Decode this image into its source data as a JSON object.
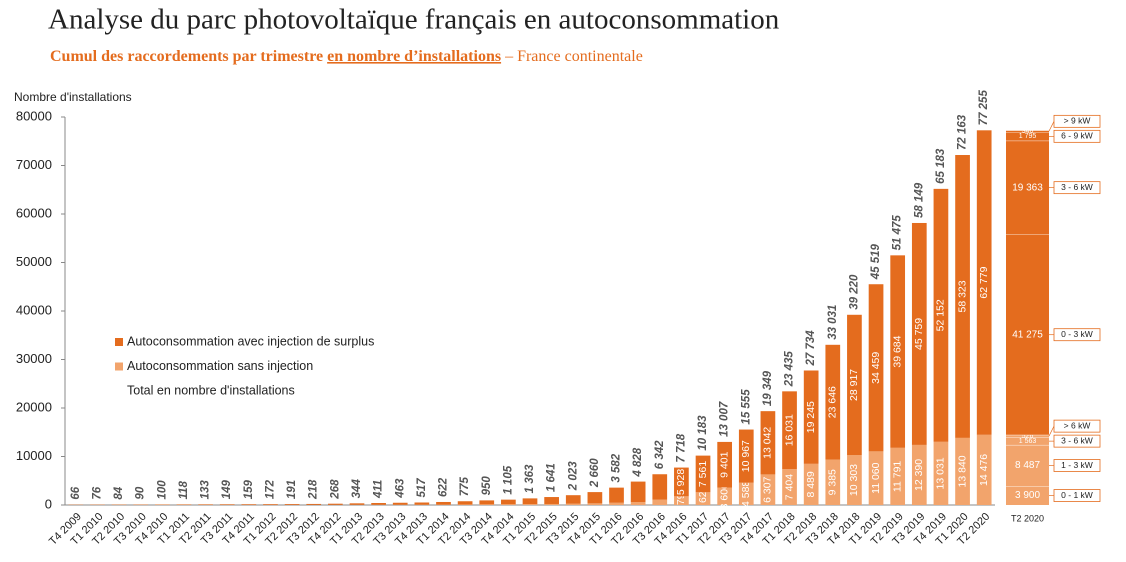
{
  "chart_data": {
    "type": "stacked_bar",
    "title": "Analyse du parc photovoltaïque français en autoconsommation",
    "subtitle": [
      "Cumul des raccordements par trimestre",
      "en nombre d’installations",
      "– France continentale"
    ],
    "y_label": "Nombre d'installations",
    "categories": [
      "T4 2009",
      "T1 2010",
      "T2 2010",
      "T3 2010",
      "T4 2010",
      "T1 2011",
      "T2 2011",
      "T3 2011",
      "T4 2011",
      "T1 2012",
      "T2 2012",
      "T3 2012",
      "T4 2012",
      "T1 2013",
      "T2 2013",
      "T3 2013",
      "T4 2013",
      "T1 2014",
      "T2 2014",
      "T3 2014",
      "T4 2014",
      "T1 2015",
      "T2 2015",
      "T3 2015",
      "T4 2015",
      "T1 2016",
      "T2 2016",
      "T3 2016",
      "T4 2016",
      "T1 2017",
      "T2 2017",
      "T3 2017",
      "T4 2017",
      "T1 2018",
      "T2 2018",
      "T3 2018",
      "T4 2018",
      "T1 2019",
      "T2 2019",
      "T3 2019",
      "T4 2019",
      "T1 2020",
      "T2 2020"
    ],
    "series": [
      {
        "name": "Autoconsommation sans injection",
        "color": "#f2a46c",
        "values": [
          10,
          10,
          10,
          10,
          10,
          15,
          15,
          20,
          20,
          20,
          25,
          30,
          40,
          50,
          60,
          70,
          80,
          90,
          110,
          130,
          150,
          180,
          210,
          260,
          340,
          460,
          620,
          1125,
          1790,
          2622,
          3606,
          4588,
          6307,
          7404,
          8489,
          9385,
          10303,
          11060,
          11791,
          12390,
          13031,
          13840,
          14476
        ],
        "value_labels": [
          null,
          null,
          null,
          null,
          null,
          null,
          null,
          null,
          null,
          null,
          null,
          null,
          null,
          null,
          null,
          null,
          null,
          null,
          null,
          null,
          null,
          null,
          null,
          null,
          null,
          null,
          null,
          null,
          "1 790",
          "2 622",
          "3 606",
          "4 588",
          "6 307",
          "7 404",
          "8 489",
          "9 385",
          "10 303",
          "11 060",
          "11 791",
          "12 390",
          "13 031",
          "13 840",
          "14 476"
        ]
      },
      {
        "name": "Autoconsommation avec injection de surplus",
        "color": "#e46c1e",
        "values": [
          56,
          66,
          74,
          80,
          90,
          103,
          118,
          129,
          139,
          152,
          166,
          188,
          228,
          294,
          351,
          393,
          437,
          532,
          665,
          820,
          955,
          1183,
          1431,
          1763,
          2320,
          3122,
          4208,
          5217,
          5928,
          7561,
          9401,
          10967,
          13042,
          16031,
          19245,
          23646,
          28917,
          34459,
          39684,
          45759,
          52152,
          58323,
          62779
        ],
        "value_labels": [
          null,
          null,
          null,
          null,
          null,
          null,
          null,
          null,
          null,
          null,
          null,
          null,
          null,
          null,
          null,
          null,
          null,
          null,
          null,
          null,
          null,
          null,
          null,
          null,
          null,
          null,
          null,
          null,
          "5 928",
          "7 561",
          "9 401",
          "10 967",
          "13 042",
          "16 031",
          "19 245",
          "23 646",
          "28 917",
          "34 459",
          "39 684",
          "45 759",
          "52 152",
          "58 323",
          "62 779"
        ]
      }
    ],
    "totals": {
      "name": "Total en nombre d'installations",
      "values": [
        66,
        76,
        84,
        90,
        100,
        118,
        133,
        149,
        159,
        172,
        191,
        218,
        268,
        344,
        411,
        463,
        517,
        622,
        775,
        950,
        1105,
        1363,
        1641,
        2023,
        2660,
        3582,
        4828,
        6342,
        7718,
        10183,
        13007,
        15555,
        19349,
        23435,
        27734,
        33031,
        39220,
        45519,
        51475,
        58149,
        65183,
        72163,
        77255
      ],
      "value_labels": [
        "66",
        "76",
        "84",
        "90",
        "100",
        "118",
        "133",
        "149",
        "159",
        "172",
        "191",
        "218",
        "268",
        "344",
        "411",
        "463",
        "517",
        "622",
        "775",
        "950",
        "1 105",
        "1 363",
        "1 641",
        "2 023",
        "2 660",
        "3 582",
        "4 828",
        "6 342",
        "7 718",
        "10 183",
        "13 007",
        "15 555",
        "19 349",
        "23 435",
        "27 734",
        "33 031",
        "39 220",
        "45 519",
        "51 475",
        "58 149",
        "65 183",
        "72 163",
        "77 255"
      ]
    },
    "ylim": [
      0,
      80000
    ],
    "yticks": [
      0,
      10000,
      20000,
      30000,
      40000,
      50000,
      60000,
      70000,
      80000
    ],
    "breakdown": {
      "category": "T2 2020",
      "segments": [
        {
          "name": "0 - 1 kW",
          "value": 3900,
          "value_label": "3 900",
          "color": "#f2a46c"
        },
        {
          "name": "1 - 3 kW",
          "value": 8487,
          "value_label": "8 487",
          "color": "#f2a46c"
        },
        {
          "name": "3 - 6 kW",
          "value": 1563,
          "value_label": "1 563",
          "color": "#f2a46c"
        },
        {
          "name": "> 6 kW",
          "value": 526,
          "value_label": "526",
          "color": "#f2a46c"
        },
        {
          "name": "0 - 3 kW",
          "value": 41275,
          "value_label": "41 275",
          "color": "#e46c1e"
        },
        {
          "name": "3 - 6 kW",
          "value": 19363,
          "value_label": "19 363",
          "color": "#e46c1e"
        },
        {
          "name": "6 - 9 kW",
          "value": 1795,
          "value_label": "1 795",
          "color": "#e46c1e"
        },
        {
          "name": "> 9 kW",
          "value": 346,
          "value_label": "346",
          "color": "#e46c1e"
        }
      ]
    }
  }
}
